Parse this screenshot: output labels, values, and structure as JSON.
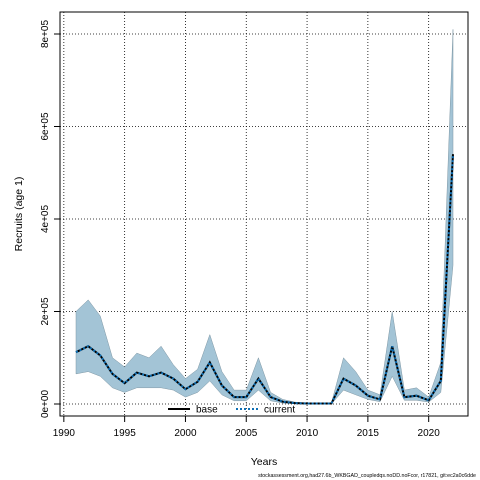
{
  "chart_data": {
    "type": "line",
    "xlabel": "Years",
    "ylabel": "Recruits (age 1)",
    "xlim": [
      1991,
      2022
    ],
    "ylim": [
      0,
      800000
    ],
    "x_ticks": [
      1990,
      1995,
      2000,
      2005,
      2010,
      2015,
      2020
    ],
    "y_ticks": [
      0,
      200000,
      400000,
      600000,
      800000
    ],
    "y_tick_labels": [
      "0e+00",
      "2e+05",
      "4e+05",
      "6e+05",
      "8e+05"
    ],
    "grid": true,
    "legend_position": "bottom",
    "x": [
      1991,
      1992,
      1993,
      1994,
      1995,
      1996,
      1997,
      1998,
      1999,
      2000,
      2001,
      2002,
      2003,
      2004,
      2005,
      2006,
      2007,
      2008,
      2009,
      2010,
      2011,
      2012,
      2013,
      2014,
      2015,
      2016,
      2017,
      2018,
      2019,
      2020,
      2021,
      2022
    ],
    "series": [
      {
        "name": "base",
        "style": "solid",
        "color": "#000000",
        "values": [
          112000,
          125000,
          105000,
          65000,
          45000,
          68000,
          60000,
          68000,
          55000,
          32000,
          48000,
          90000,
          40000,
          15000,
          15000,
          55000,
          15000,
          5000,
          2000,
          1000,
          1000,
          1000,
          55000,
          40000,
          18000,
          10000,
          125000,
          15000,
          18000,
          8000,
          50000,
          540000
        ]
      },
      {
        "name": "current",
        "style": "dotted",
        "color": "#0e6fb4",
        "values": [
          112000,
          125000,
          105000,
          65000,
          45000,
          68000,
          60000,
          68000,
          55000,
          32000,
          48000,
          90000,
          40000,
          15000,
          15000,
          55000,
          15000,
          5000,
          2000,
          1000,
          1000,
          1000,
          55000,
          40000,
          18000,
          10000,
          125000,
          15000,
          18000,
          8000,
          50000,
          540000
        ]
      }
    ],
    "band": {
      "color": "#a3c4d6",
      "lower": [
        65000,
        70000,
        60000,
        35000,
        25000,
        35000,
        35000,
        35000,
        30000,
        15000,
        25000,
        50000,
        20000,
        7000,
        7000,
        30000,
        7000,
        2000,
        1000,
        0,
        0,
        0,
        30000,
        20000,
        10000,
        5000,
        60000,
        8000,
        8000,
        4000,
        25000,
        300000
      ],
      "upper": [
        200000,
        225000,
        190000,
        100000,
        80000,
        110000,
        100000,
        125000,
        85000,
        55000,
        75000,
        150000,
        70000,
        30000,
        30000,
        100000,
        25000,
        10000,
        4000,
        2000,
        2000,
        2000,
        100000,
        70000,
        30000,
        20000,
        200000,
        30000,
        35000,
        15000,
        90000,
        810000
      ]
    }
  },
  "caption": "stockassessment.org,had27.6b_WKBGAD_coupledqs.noDD.noFcor, r17821, git:ec2a0c6dde"
}
